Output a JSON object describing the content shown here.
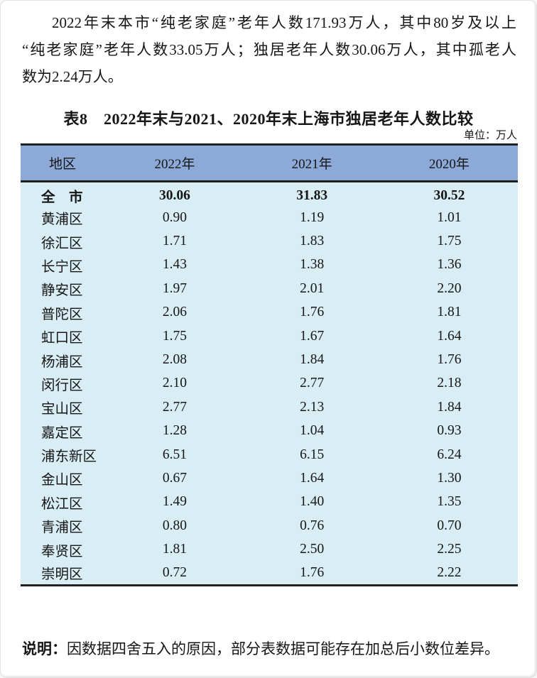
{
  "page": {
    "intro_lines": [
      "2022年末本市“纯老家庭”老年人数171.93万人，其中80岁及以上",
      "“纯老家庭”老年人数33.05万人；独居老年人数30.06万人，其中孤老人",
      "数为2.24万人。"
    ],
    "table_title": "表8　2022年末与2021、2020年末上海市独居老年人数比较",
    "unit_label": "单位：万人",
    "note": {
      "label": "说明：",
      "text": "因数据四舍五入的原因，部分表数据可能存在加总后小数位差异。"
    }
  },
  "table": {
    "columns": [
      "地区",
      "2022年",
      "2021年",
      "2020年"
    ],
    "rows": [
      {
        "region": "全　市",
        "values": [
          "30.06",
          "31.83",
          "30.52"
        ],
        "bold": true
      },
      {
        "region": "黄浦区",
        "values": [
          "0.90",
          "1.19",
          "1.01"
        ],
        "bold": false
      },
      {
        "region": "徐汇区",
        "values": [
          "1.71",
          "1.83",
          "1.75"
        ],
        "bold": false
      },
      {
        "region": "长宁区",
        "values": [
          "1.43",
          "1.38",
          "1.36"
        ],
        "bold": false
      },
      {
        "region": "静安区",
        "values": [
          "1.97",
          "2.01",
          "2.20"
        ],
        "bold": false
      },
      {
        "region": "普陀区",
        "values": [
          "2.06",
          "1.76",
          "1.81"
        ],
        "bold": false
      },
      {
        "region": "虹口区",
        "values": [
          "1.75",
          "1.67",
          "1.64"
        ],
        "bold": false
      },
      {
        "region": "杨浦区",
        "values": [
          "2.08",
          "1.84",
          "1.76"
        ],
        "bold": false
      },
      {
        "region": "闵行区",
        "values": [
          "2.10",
          "2.77",
          "2.18"
        ],
        "bold": false
      },
      {
        "region": "宝山区",
        "values": [
          "2.77",
          "2.13",
          "1.84"
        ],
        "bold": false
      },
      {
        "region": "嘉定区",
        "values": [
          "1.28",
          "1.04",
          "0.93"
        ],
        "bold": false
      },
      {
        "region": "浦东新区",
        "values": [
          "6.51",
          "6.15",
          "6.24"
        ],
        "bold": false
      },
      {
        "region": "金山区",
        "values": [
          "0.67",
          "1.64",
          "1.30"
        ],
        "bold": false
      },
      {
        "region": "松江区",
        "values": [
          "1.49",
          "1.40",
          "1.35"
        ],
        "bold": false
      },
      {
        "region": "青浦区",
        "values": [
          "0.80",
          "0.76",
          "0.70"
        ],
        "bold": false
      },
      {
        "region": "奉贤区",
        "values": [
          "1.81",
          "2.50",
          "2.25"
        ],
        "bold": false
      },
      {
        "region": "崇明区",
        "values": [
          "0.72",
          "1.76",
          "2.22"
        ],
        "bold": false
      }
    ]
  },
  "colors": {
    "header_bg": "#8ca9d8",
    "body_bg": "#d9edf5",
    "border": "#1f1f1f"
  }
}
